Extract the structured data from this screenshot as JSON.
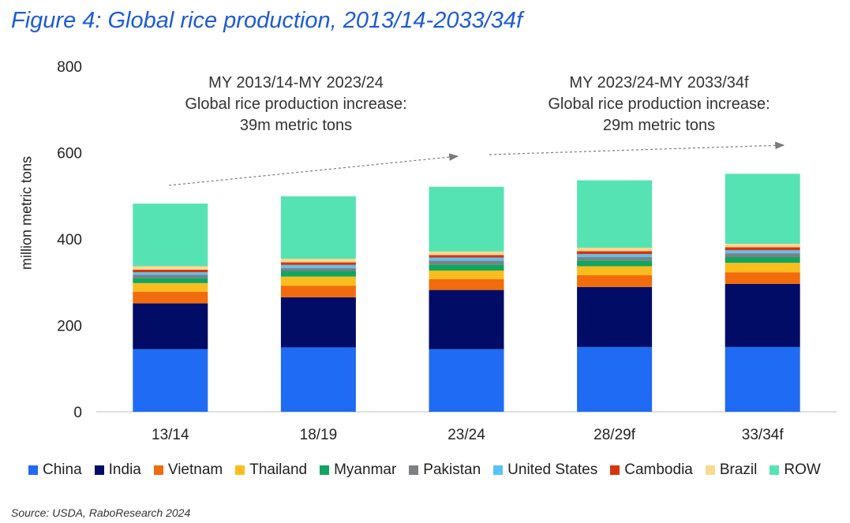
{
  "title": "Figure 4: Global rice production, 2013/14-2033/34f",
  "source_label": "Source:",
  "source_text": "USDA, RaboResearch 2024",
  "annotations": {
    "left": {
      "line1": "MY 2013/14-MY 2023/24",
      "line2": "Global rice production increase:",
      "line3": "39m metric tons"
    },
    "right": {
      "line1": "MY 2023/24-MY 2033/34f",
      "line2": "Global rice production increase:",
      "line3": "29m metric tons"
    }
  },
  "chart_data": {
    "type": "bar",
    "stacked": true,
    "title": "Figure 4: Global rice production, 2013/14-2033/34f",
    "xlabel": "",
    "ylabel": "million metric tons",
    "ylim": [
      0,
      800
    ],
    "yticks": [
      0,
      200,
      400,
      600,
      800
    ],
    "categories": [
      "13/14",
      "18/19",
      "23/24",
      "28/29f",
      "33/34f"
    ],
    "series": [
      {
        "name": "China",
        "color": "#1f6bf3",
        "values": [
          145,
          149,
          145,
          150,
          150
        ]
      },
      {
        "name": "India",
        "color": "#000c66",
        "values": [
          106,
          116,
          137,
          139,
          146
        ]
      },
      {
        "name": "Vietnam",
        "color": "#f26b0c",
        "values": [
          27,
          27,
          25,
          27,
          27
        ]
      },
      {
        "name": "Thailand",
        "color": "#fbbc1d",
        "values": [
          20,
          21,
          20,
          21,
          22
        ]
      },
      {
        "name": "Myanmar",
        "color": "#0fa660",
        "values": [
          12,
          13,
          14,
          13,
          13
        ]
      },
      {
        "name": "Pakistan",
        "color": "#7d8186",
        "values": [
          7,
          7,
          9,
          8,
          9
        ]
      },
      {
        "name": "United States",
        "color": "#58c3f5",
        "values": [
          6,
          7,
          7,
          7,
          7
        ]
      },
      {
        "name": "Cambodia",
        "color": "#d9330e",
        "values": [
          6,
          6,
          6,
          7,
          7
        ]
      },
      {
        "name": "Brazil",
        "color": "#fbd98f",
        "values": [
          8,
          8,
          8,
          8,
          8
        ]
      },
      {
        "name": "ROW",
        "color": "#56e3b3",
        "values": [
          145,
          145,
          150,
          156,
          162
        ]
      }
    ],
    "legend_position": "bottom"
  }
}
